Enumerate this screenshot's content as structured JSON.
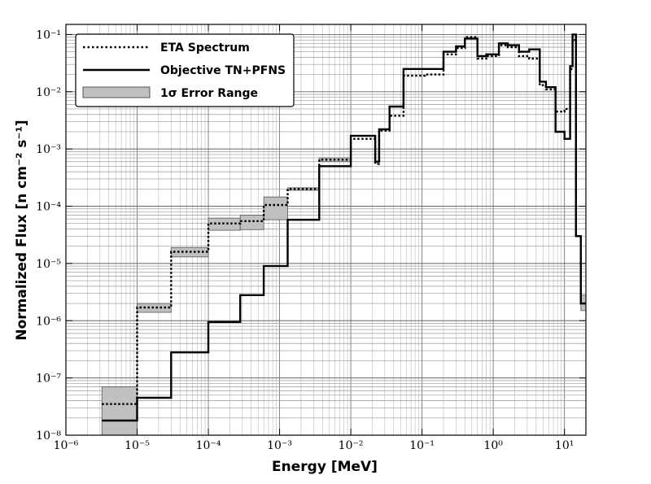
{
  "chart_data": {
    "type": "line",
    "title": "",
    "xlabel": "Energy [MeV]",
    "ylabel": "Normalized Flux [n cm⁻² s⁻¹]",
    "xscale": "log",
    "yscale": "log",
    "xlim": [
      1e-06,
      20
    ],
    "ylim": [
      1e-08,
      0.15
    ],
    "grid": true,
    "legend_position": "top-left",
    "xticks": [
      {
        "value": 1e-06,
        "label": "10⁻⁶"
      },
      {
        "value": 1e-05,
        "label": "10⁻⁵"
      },
      {
        "value": 0.0001,
        "label": "10⁻⁴"
      },
      {
        "value": 0.001,
        "label": "10⁻³"
      },
      {
        "value": 0.01,
        "label": "10⁻²"
      },
      {
        "value": 0.1,
        "label": "10⁻¹"
      },
      {
        "value": 1,
        "label": "10⁰"
      },
      {
        "value": 10,
        "label": "10¹"
      }
    ],
    "yticks": [
      {
        "value": 1e-08,
        "label": "10⁻⁸"
      },
      {
        "value": 1e-07,
        "label": "10⁻⁷"
      },
      {
        "value": 1e-06,
        "label": "10⁻⁶"
      },
      {
        "value": 1e-05,
        "label": "10⁻⁵"
      },
      {
        "value": 0.0001,
        "label": "10⁻⁴"
      },
      {
        "value": 0.001,
        "label": "10⁻³"
      },
      {
        "value": 0.01,
        "label": "10⁻²"
      },
      {
        "value": 0.1,
        "label": "10⁻¹"
      }
    ],
    "legend": [
      {
        "label": "ETA Spectrum",
        "style": "dotted"
      },
      {
        "label": "Objective TN+PFNS",
        "style": "solid"
      },
      {
        "label": "1σ Error Range",
        "style": "band"
      }
    ],
    "series": [
      {
        "name": "ETA Spectrum",
        "style": "dotted",
        "bins": [
          {
            "x0": 3.2e-06,
            "x1": 1e-05,
            "y": 3.5e-08
          },
          {
            "x0": 1e-05,
            "x1": 3e-05,
            "y": 1.7e-06
          },
          {
            "x0": 3e-05,
            "x1": 0.0001,
            "y": 1.6e-05
          },
          {
            "x0": 0.0001,
            "x1": 0.00028,
            "y": 5e-05
          },
          {
            "x0": 0.00028,
            "x1": 0.0006,
            "y": 5.5e-05
          },
          {
            "x0": 0.0006,
            "x1": 0.0013,
            "y": 0.000105
          },
          {
            "x0": 0.0013,
            "x1": 0.0036,
            "y": 0.0002
          },
          {
            "x0": 0.0036,
            "x1": 0.01,
            "y": 0.00065
          },
          {
            "x0": 0.01,
            "x1": 0.022,
            "y": 0.0015
          },
          {
            "x0": 0.022,
            "x1": 0.025,
            "y": 0.00055
          },
          {
            "x0": 0.025,
            "x1": 0.035,
            "y": 0.0021
          },
          {
            "x0": 0.035,
            "x1": 0.055,
            "y": 0.0038
          },
          {
            "x0": 0.055,
            "x1": 0.11,
            "y": 0.019
          },
          {
            "x0": 0.11,
            "x1": 0.2,
            "y": 0.02
          },
          {
            "x0": 0.2,
            "x1": 0.3,
            "y": 0.045
          },
          {
            "x0": 0.3,
            "x1": 0.4,
            "y": 0.058
          },
          {
            "x0": 0.4,
            "x1": 0.6,
            "y": 0.09
          },
          {
            "x0": 0.6,
            "x1": 0.8,
            "y": 0.038
          },
          {
            "x0": 0.8,
            "x1": 1.2,
            "y": 0.042
          },
          {
            "x0": 1.2,
            "x1": 1.6,
            "y": 0.065
          },
          {
            "x0": 1.6,
            "x1": 2.3,
            "y": 0.06
          },
          {
            "x0": 2.3,
            "x1": 3.2,
            "y": 0.042
          },
          {
            "x0": 3.2,
            "x1": 4.5,
            "y": 0.038
          },
          {
            "x0": 4.5,
            "x1": 5.5,
            "y": 0.013
          },
          {
            "x0": 5.5,
            "x1": 7.5,
            "y": 0.011
          },
          {
            "x0": 7.5,
            "x1": 10,
            "y": 0.0045
          },
          {
            "x0": 10,
            "x1": 12,
            "y": 0.005
          },
          {
            "x0": 12,
            "x1": 13,
            "y": 0.025
          },
          {
            "x0": 13,
            "x1": 14.5,
            "y": 0.08
          },
          {
            "x0": 14.5,
            "x1": 17,
            "y": 3e-05
          },
          {
            "x0": 17,
            "x1": 20,
            "y": 2e-06
          }
        ]
      },
      {
        "name": "Objective TN+PFNS",
        "style": "solid",
        "bins": [
          {
            "x0": 3.2e-06,
            "x1": 1e-05,
            "y": 1.8e-08
          },
          {
            "x0": 1e-05,
            "x1": 3e-05,
            "y": 4.5e-08
          },
          {
            "x0": 3e-05,
            "x1": 0.0001,
            "y": 2.8e-07
          },
          {
            "x0": 0.0001,
            "x1": 0.00028,
            "y": 9.5e-07
          },
          {
            "x0": 0.00028,
            "x1": 0.0006,
            "y": 2.8e-06
          },
          {
            "x0": 0.0006,
            "x1": 0.0013,
            "y": 9e-06
          },
          {
            "x0": 0.0013,
            "x1": 0.0036,
            "y": 5.8e-05
          },
          {
            "x0": 0.0036,
            "x1": 0.01,
            "y": 0.0005
          },
          {
            "x0": 0.01,
            "x1": 0.022,
            "y": 0.0017
          },
          {
            "x0": 0.022,
            "x1": 0.025,
            "y": 0.0006
          },
          {
            "x0": 0.025,
            "x1": 0.035,
            "y": 0.0022
          },
          {
            "x0": 0.035,
            "x1": 0.055,
            "y": 0.0055
          },
          {
            "x0": 0.055,
            "x1": 0.11,
            "y": 0.025
          },
          {
            "x0": 0.11,
            "x1": 0.2,
            "y": 0.025
          },
          {
            "x0": 0.2,
            "x1": 0.3,
            "y": 0.05
          },
          {
            "x0": 0.3,
            "x1": 0.4,
            "y": 0.062
          },
          {
            "x0": 0.4,
            "x1": 0.6,
            "y": 0.085
          },
          {
            "x0": 0.6,
            "x1": 0.8,
            "y": 0.042
          },
          {
            "x0": 0.8,
            "x1": 1.2,
            "y": 0.045
          },
          {
            "x0": 1.2,
            "x1": 1.6,
            "y": 0.07
          },
          {
            "x0": 1.6,
            "x1": 2.3,
            "y": 0.065
          },
          {
            "x0": 2.3,
            "x1": 3.2,
            "y": 0.05
          },
          {
            "x0": 3.2,
            "x1": 4.5,
            "y": 0.055
          },
          {
            "x0": 4.5,
            "x1": 5.5,
            "y": 0.015
          },
          {
            "x0": 5.5,
            "x1": 7.5,
            "y": 0.012
          },
          {
            "x0": 7.5,
            "x1": 10,
            "y": 0.002
          },
          {
            "x0": 10,
            "x1": 12,
            "y": 0.0015
          },
          {
            "x0": 12,
            "x1": 13,
            "y": 0.028
          },
          {
            "x0": 13,
            "x1": 14.5,
            "y": 0.1
          },
          {
            "x0": 14.5,
            "x1": 17,
            "y": 3e-05
          },
          {
            "x0": 17,
            "x1": 20,
            "y": 2e-06
          }
        ]
      }
    ],
    "error_band": {
      "name": "1σ Error Range",
      "bins": [
        {
          "x0": 3.2e-06,
          "x1": 1e-05,
          "lo": 1e-08,
          "hi": 7e-08
        },
        {
          "x0": 1e-05,
          "x1": 3e-05,
          "lo": 1.4e-06,
          "hi": 2e-06
        },
        {
          "x0": 3e-05,
          "x1": 0.0001,
          "lo": 1.3e-05,
          "hi": 1.9e-05
        },
        {
          "x0": 0.0001,
          "x1": 0.00028,
          "lo": 3.8e-05,
          "hi": 6.2e-05
        },
        {
          "x0": 0.00028,
          "x1": 0.0006,
          "lo": 3.9e-05,
          "hi": 7e-05
        },
        {
          "x0": 0.0006,
          "x1": 0.0013,
          "lo": 5.8e-05,
          "hi": 0.000145
        },
        {
          "x0": 0.0013,
          "x1": 0.0036,
          "lo": 0.00019,
          "hi": 0.00021
        },
        {
          "x0": 0.0036,
          "x1": 0.01,
          "lo": 0.0006,
          "hi": 0.0007
        },
        {
          "x0": 17,
          "x1": 20,
          "lo": 1.5e-06,
          "hi": 2.8e-06
        }
      ]
    }
  }
}
